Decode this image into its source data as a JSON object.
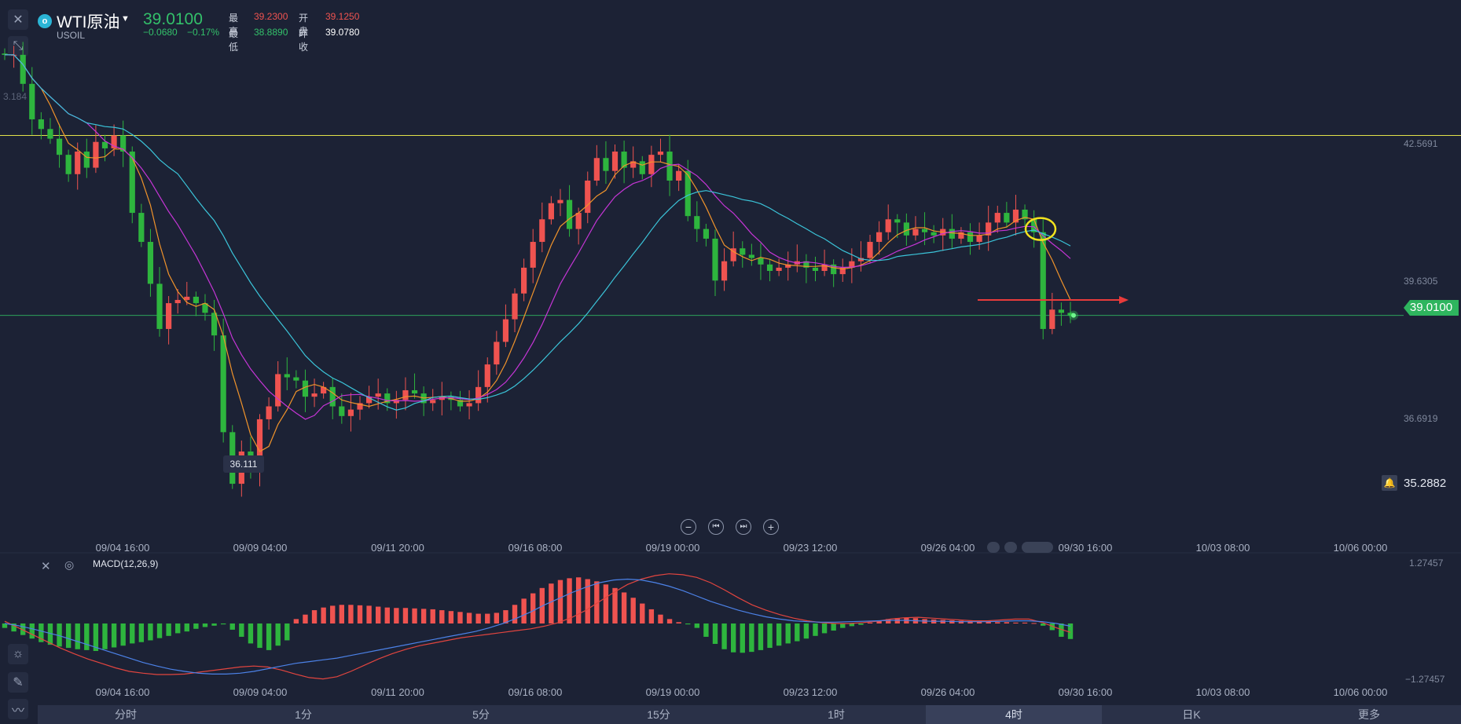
{
  "header": {
    "name": "WTI原油",
    "code": "USOIL",
    "price": "39.0100",
    "change": "−0.0680",
    "change_pct": "−0.17%",
    "high_label": "最高",
    "high": "39.2300",
    "open_label": "开盘",
    "open": "39.1250",
    "low_label": "最低",
    "low": "38.8890",
    "prev_close_label": "昨收",
    "prev_close": "39.0780"
  },
  "price_axis": {
    "labels": [
      "42.5691",
      "39.6305",
      "36.6919"
    ],
    "current_price": "39.0100",
    "alert_price": "35.2882",
    "left_cut_label": "3.184",
    "low_marker": "36.111"
  },
  "time_axis": [
    "09/04 16:00",
    "09/09 04:00",
    "09/11 20:00",
    "09/16 08:00",
    "09/19 00:00",
    "09/23 12:00",
    "09/26 04:00",
    "09/30 16:00",
    "10/03 08:00",
    "10/06 00:00"
  ],
  "macd": {
    "title": "MACD(12,26,9)",
    "axis_labels": [
      "1.27457",
      "−1.27457"
    ]
  },
  "timeframes": {
    "items": [
      "分时",
      "1分",
      "5分",
      "15分",
      "1时",
      "4时",
      "日K",
      "更多"
    ],
    "active": "4时"
  },
  "colors": {
    "up": "#ef5350",
    "down": "#2eb53e",
    "ma5": "#f0932b",
    "ma10": "#c535d6",
    "ma20": "#3bc4d9",
    "support": "#e2e24a",
    "macd_dif": "#e2453f",
    "macd_dea": "#4c82e8"
  },
  "chart_data": [
    {
      "type": "candlestick",
      "title": "WTI原油 4时",
      "ylim": [
        35.5,
        43.9
      ],
      "x": [
        "09/04 16:00",
        "09/09 04:00",
        "09/11 20:00",
        "09/16 08:00",
        "09/19 00:00",
        "09/23 12:00",
        "09/26 04:00",
        "09/30 16:00"
      ],
      "last_close": 39.01,
      "low_marker": 36.111,
      "horizontal_lines": [
        41.8,
        39.01
      ],
      "close_series": [
        43.05,
        43.05,
        42.6,
        42.05,
        41.9,
        41.75,
        41.5,
        41.2,
        41.55,
        41.3,
        41.7,
        41.6,
        41.8,
        41.55,
        40.6,
        40.15,
        39.5,
        38.8,
        39.2,
        39.25,
        39.3,
        39.2,
        39.05,
        38.7,
        37.2,
        36.4,
        36.9,
        36.6,
        37.4,
        37.6,
        38.1,
        38.05,
        38.0,
        37.75,
        37.8,
        37.9,
        37.6,
        37.45,
        37.55,
        37.65,
        37.75,
        37.8,
        37.65,
        37.7,
        37.85,
        37.8,
        37.65,
        37.7,
        37.75,
        37.7,
        37.6,
        37.65,
        37.9,
        38.25,
        38.6,
        38.95,
        39.35,
        39.75,
        40.15,
        40.5,
        40.75,
        40.8,
        40.35,
        40.6,
        41.1,
        41.45,
        41.25,
        41.55,
        41.3,
        41.4,
        41.2,
        41.5,
        41.55,
        41.1,
        41.25,
        40.55,
        40.35,
        40.2,
        39.55,
        39.85,
        40.05,
        39.95,
        39.9,
        39.8,
        39.7,
        39.75,
        39.8,
        39.85,
        39.75,
        39.7,
        39.8,
        39.65,
        39.75,
        39.85,
        39.9,
        40.15,
        40.3,
        40.5,
        40.45,
        40.25,
        40.35,
        40.3,
        40.25,
        40.35,
        40.2,
        40.3,
        40.15,
        40.25,
        40.45,
        40.6,
        40.45,
        40.65,
        40.5,
        40.3,
        38.8,
        39.1,
        39.05,
        39.01
      ]
    },
    {
      "type": "bar",
      "title": "MACD(12,26,9)",
      "ylim": [
        -1.27457,
        1.27457
      ],
      "histogram": [
        -0.1,
        -0.18,
        -0.26,
        -0.34,
        -0.42,
        -0.48,
        -0.52,
        -0.55,
        -0.58,
        -0.6,
        -0.62,
        -0.58,
        -0.54,
        -0.5,
        -0.45,
        -0.42,
        -0.38,
        -0.33,
        -0.28,
        -0.22,
        -0.18,
        -0.12,
        -0.08,
        -0.05,
        -0.02,
        -0.14,
        -0.3,
        -0.45,
        -0.55,
        -0.6,
        -0.5,
        -0.38,
        0.1,
        0.2,
        0.3,
        0.36,
        0.4,
        0.42,
        0.42,
        0.41,
        0.4,
        0.38,
        0.36,
        0.35,
        0.35,
        0.34,
        0.33,
        0.32,
        0.3,
        0.28,
        0.26,
        0.24,
        0.22,
        0.22,
        0.24,
        0.3,
        0.42,
        0.56,
        0.68,
        0.8,
        0.9,
        0.98,
        1.02,
        1.04,
        1.0,
        0.95,
        0.88,
        0.8,
        0.7,
        0.58,
        0.45,
        0.32,
        0.2,
        0.1,
        0.03,
        -0.02,
        -0.1,
        -0.3,
        -0.46,
        -0.58,
        -0.65,
        -0.66,
        -0.64,
        -0.6,
        -0.55,
        -0.5,
        -0.45,
        -0.4,
        -0.34,
        -0.28,
        -0.22,
        -0.16,
        -0.1,
        -0.06,
        -0.03,
        0.02,
        0.06,
        0.1,
        0.12,
        0.13,
        0.12,
        0.1,
        0.09,
        0.08,
        0.07,
        0.06,
        0.05,
        0.04,
        0.04,
        0.03,
        0.03,
        0.02,
        0.02,
        0.01,
        -0.05,
        -0.15,
        -0.3,
        -0.35
      ],
      "dif": [
        0.05,
        -0.1,
        -0.25,
        -0.4,
        -0.55,
        -0.68,
        -0.8,
        -0.9,
        -1.0,
        -1.08,
        -1.12,
        -1.15,
        -1.15,
        -1.14,
        -1.1,
        -1.06,
        -1.02,
        -0.98,
        -0.96,
        -0.98,
        -1.05,
        -1.14,
        -1.22,
        -1.25,
        -1.2,
        -1.08,
        -0.94,
        -0.8,
        -0.68,
        -0.58,
        -0.5,
        -0.44,
        -0.38,
        -0.32,
        -0.28,
        -0.24,
        -0.2,
        -0.16,
        -0.12,
        -0.06,
        0.02,
        0.14,
        0.3,
        0.5,
        0.7,
        0.88,
        1.0,
        1.08,
        1.12,
        1.1,
        1.04,
        0.92,
        0.76,
        0.58,
        0.42,
        0.3,
        0.2,
        0.12,
        0.06,
        0.02,
        0.0,
        0.0,
        0.02,
        0.05,
        0.1,
        0.13,
        0.14,
        0.12,
        0.1,
        0.08,
        0.06,
        0.06,
        0.08,
        0.1,
        0.1,
        0.02,
        -0.1,
        -0.2
      ],
      "dea": [
        0.0,
        -0.05,
        -0.12,
        -0.2,
        -0.28,
        -0.38,
        -0.48,
        -0.58,
        -0.68,
        -0.78,
        -0.88,
        -0.96,
        -1.03,
        -1.08,
        -1.12,
        -1.14,
        -1.14,
        -1.12,
        -1.08,
        -1.02,
        -0.96,
        -0.9,
        -0.86,
        -0.82,
        -0.78,
        -0.72,
        -0.66,
        -0.6,
        -0.54,
        -0.48,
        -0.42,
        -0.36,
        -0.3,
        -0.24,
        -0.18,
        -0.1,
        0.0,
        0.12,
        0.26,
        0.42,
        0.56,
        0.7,
        0.82,
        0.92,
        0.98,
        1.0,
        0.98,
        0.92,
        0.84,
        0.74,
        0.62,
        0.5,
        0.4,
        0.3,
        0.22,
        0.15,
        0.1,
        0.06,
        0.04,
        0.03,
        0.03,
        0.04,
        0.05,
        0.06,
        0.07,
        0.07,
        0.06,
        0.05,
        0.05,
        0.04,
        0.04,
        0.04,
        0.05,
        0.06,
        0.06,
        0.04,
        0.0,
        -0.06
      ]
    }
  ]
}
